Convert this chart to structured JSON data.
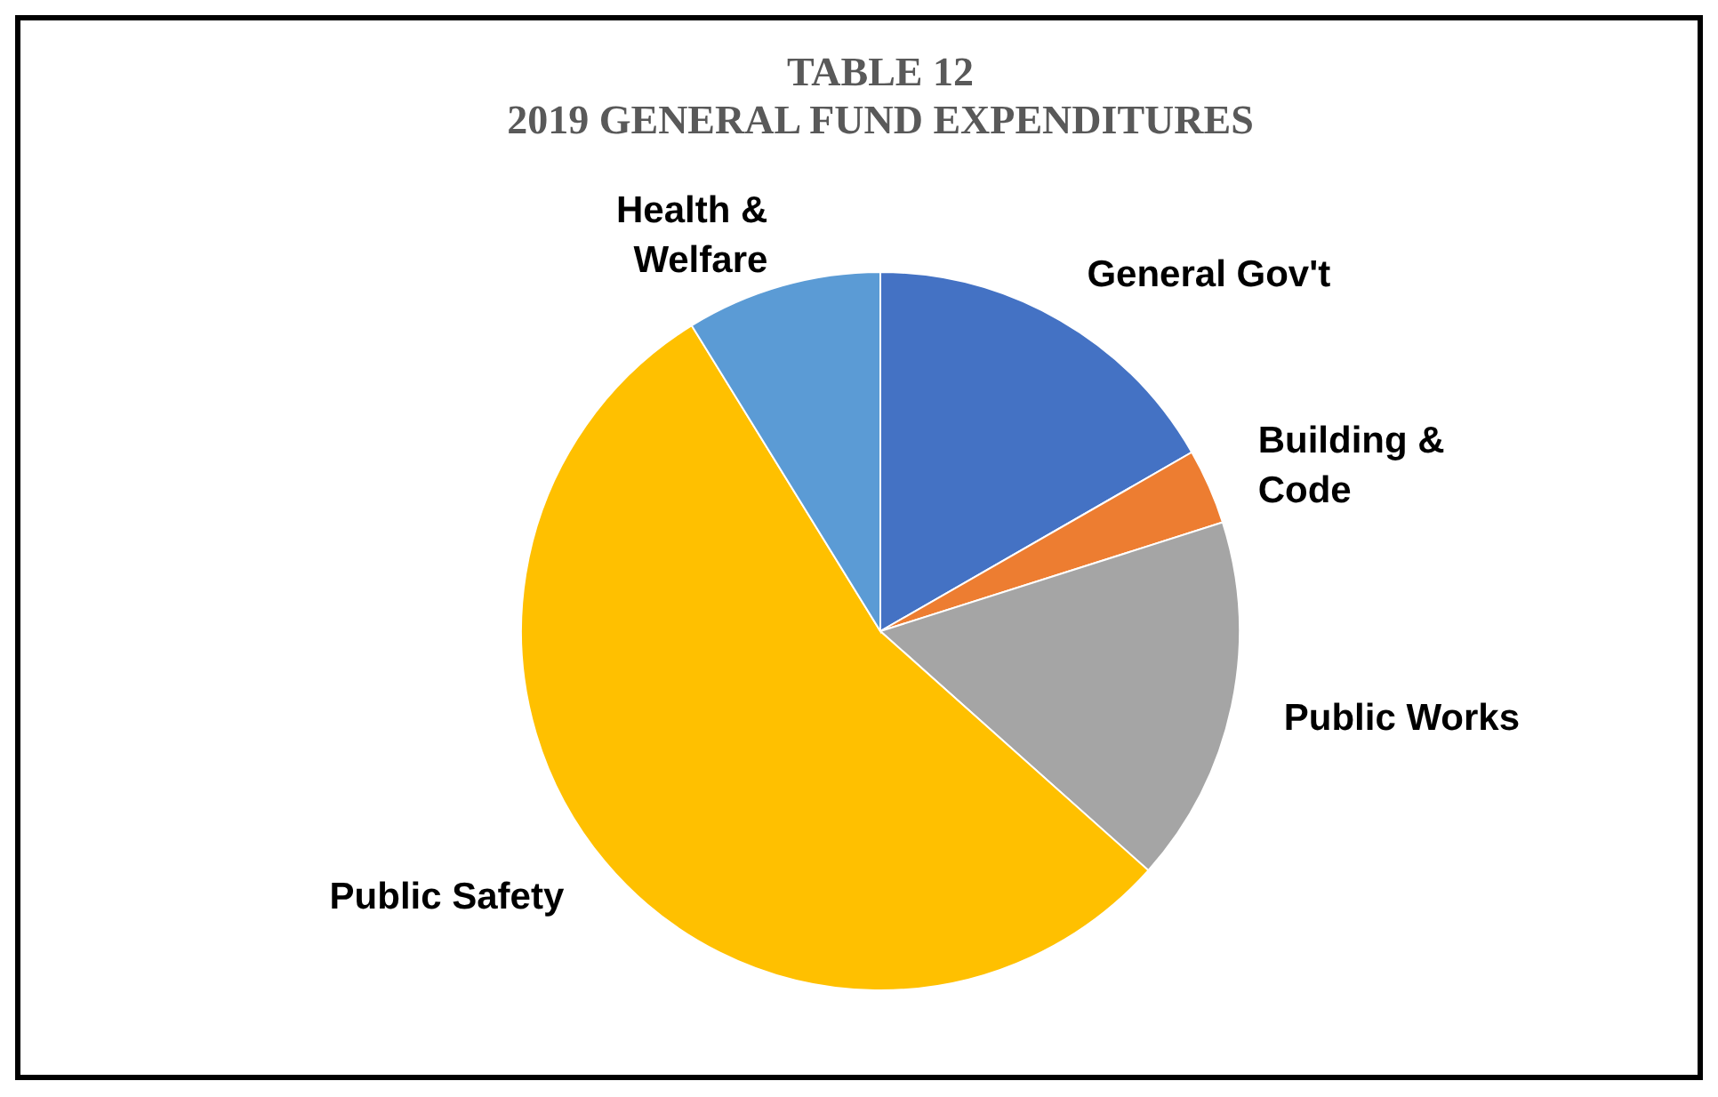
{
  "chart_data": {
    "type": "pie",
    "title": "TABLE 12\n2019 GENERAL FUND EXPENDITURES",
    "categories": [
      "General Gov't",
      "Building & Code",
      "Public Works",
      "Public Safety",
      "Health & Welfare"
    ],
    "values": [
      16.7,
      3.4,
      16.5,
      54.6,
      8.8
    ],
    "colors": [
      "#4472c4",
      "#ed7d31",
      "#a5a5a5",
      "#ffc000",
      "#5b9bd5"
    ]
  }
}
